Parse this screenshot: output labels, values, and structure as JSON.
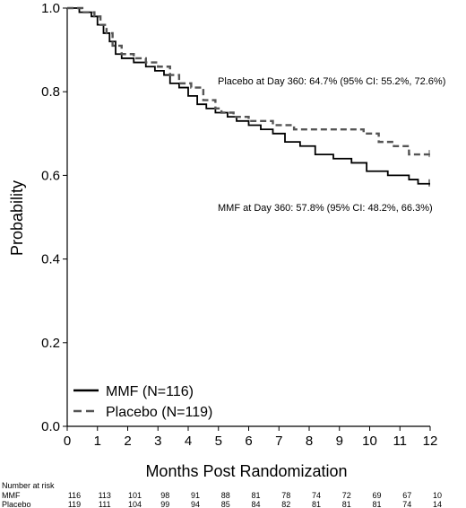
{
  "chart_data": {
    "type": "line",
    "subtype": "kaplan-meier",
    "xlabel": "Months Post Randomization",
    "ylabel": "Probability",
    "xlim": [
      0,
      12
    ],
    "ylim": [
      0,
      1.0
    ],
    "x_ticks": [
      0,
      1,
      2,
      3,
      4,
      5,
      6,
      7,
      8,
      9,
      10,
      11,
      12
    ],
    "y_ticks": [
      0.0,
      0.2,
      0.4,
      0.6,
      0.8,
      1.0
    ],
    "y_tick_labels": [
      "0.0",
      "0.2",
      "0.4",
      "0.6",
      "0.8",
      "1.0"
    ],
    "grid": false,
    "legend_position": "bottom-left",
    "series": [
      {
        "name": "MMF (N=116)",
        "style": "solid",
        "color": "#000000",
        "points": [
          [
            0,
            1.0
          ],
          [
            0.4,
            0.99
          ],
          [
            0.8,
            0.98
          ],
          [
            1.0,
            0.96
          ],
          [
            1.2,
            0.94
          ],
          [
            1.4,
            0.92
          ],
          [
            1.6,
            0.89
          ],
          [
            1.8,
            0.88
          ],
          [
            2.2,
            0.87
          ],
          [
            2.6,
            0.86
          ],
          [
            2.9,
            0.85
          ],
          [
            3.2,
            0.84
          ],
          [
            3.4,
            0.82
          ],
          [
            3.7,
            0.81
          ],
          [
            4.0,
            0.79
          ],
          [
            4.3,
            0.77
          ],
          [
            4.6,
            0.76
          ],
          [
            4.9,
            0.75
          ],
          [
            5.3,
            0.74
          ],
          [
            5.6,
            0.73
          ],
          [
            6.0,
            0.72
          ],
          [
            6.4,
            0.71
          ],
          [
            6.8,
            0.7
          ],
          [
            7.2,
            0.68
          ],
          [
            7.7,
            0.67
          ],
          [
            8.2,
            0.65
          ],
          [
            8.8,
            0.64
          ],
          [
            9.4,
            0.63
          ],
          [
            9.9,
            0.61
          ],
          [
            10.6,
            0.6
          ],
          [
            11.3,
            0.59
          ],
          [
            11.6,
            0.58
          ],
          [
            12.0,
            0.58
          ]
        ],
        "day_360_annotation": "MMF at Day 360: 57.8% (95% CI: 48.2%, 66.3%)"
      },
      {
        "name": "Placebo (N=119)",
        "style": "dashed",
        "color": "#555555",
        "points": [
          [
            0,
            1.0
          ],
          [
            0.5,
            0.99
          ],
          [
            0.9,
            0.98
          ],
          [
            1.1,
            0.96
          ],
          [
            1.3,
            0.94
          ],
          [
            1.5,
            0.91
          ],
          [
            1.8,
            0.89
          ],
          [
            2.2,
            0.88
          ],
          [
            2.6,
            0.87
          ],
          [
            3.0,
            0.86
          ],
          [
            3.4,
            0.84
          ],
          [
            3.7,
            0.82
          ],
          [
            4.1,
            0.81
          ],
          [
            4.5,
            0.78
          ],
          [
            4.9,
            0.76
          ],
          [
            5.1,
            0.75
          ],
          [
            5.5,
            0.74
          ],
          [
            6.0,
            0.73
          ],
          [
            6.8,
            0.72
          ],
          [
            7.5,
            0.71
          ],
          [
            9.8,
            0.7
          ],
          [
            10.3,
            0.68
          ],
          [
            10.8,
            0.67
          ],
          [
            11.3,
            0.65
          ],
          [
            12.0,
            0.65
          ]
        ],
        "day_360_annotation": "Placebo at Day 360: 64.7% (95% CI: 55.2%, 72.6%)"
      }
    ],
    "risk_table": {
      "title": "Number at risk",
      "rows": [
        {
          "label": "MMF",
          "values": [
            "116",
            "113",
            "101",
            "98",
            "91",
            "88",
            "81",
            "78",
            "74",
            "72",
            "69",
            "67",
            "10"
          ]
        },
        {
          "label": "Placebo",
          "values": [
            "119",
            "111",
            "104",
            "99",
            "94",
            "85",
            "84",
            "82",
            "81",
            "81",
            "81",
            "74",
            "14"
          ]
        }
      ]
    }
  }
}
